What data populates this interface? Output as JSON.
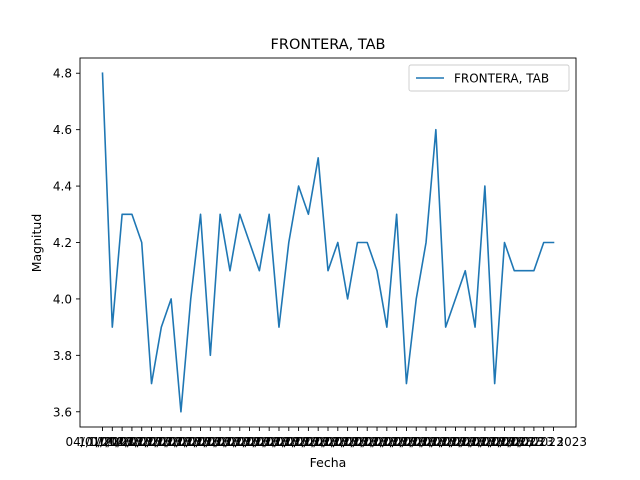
{
  "chart_data": {
    "type": "line",
    "title": "FRONTERA, TAB",
    "xlabel": "Fecha",
    "ylabel": "Magnitud",
    "ylim": [
      3.546,
      4.854
    ],
    "yticks": [
      3.6,
      3.8,
      4.0,
      4.2,
      4.4,
      4.6,
      4.8
    ],
    "ytick_labels": [
      "3.6",
      "3.8",
      "4.0",
      "4.2",
      "4.4",
      "4.6",
      "4.8"
    ],
    "legend": "top-right",
    "grid": false,
    "color": "#1f77b4",
    "first_x_label": "04/01/2023",
    "last_x_label": "2023",
    "series": [
      {
        "name": "FRONTERA, TAB",
        "values": [
          4.8,
          3.9,
          4.3,
          4.3,
          4.2,
          3.7,
          3.9,
          4.0,
          3.6,
          4.0,
          4.3,
          3.8,
          4.3,
          4.1,
          4.3,
          4.2,
          4.1,
          4.3,
          3.9,
          4.2,
          4.4,
          4.3,
          4.5,
          4.1,
          4.2,
          4.0,
          4.2,
          4.2,
          4.1,
          3.9,
          4.3,
          3.7,
          4.0,
          4.2,
          4.6,
          3.9,
          4.0,
          4.1,
          3.9,
          4.4,
          3.7,
          4.2,
          4.1,
          4.1,
          4.1,
          4.2,
          4.2
        ]
      }
    ]
  }
}
